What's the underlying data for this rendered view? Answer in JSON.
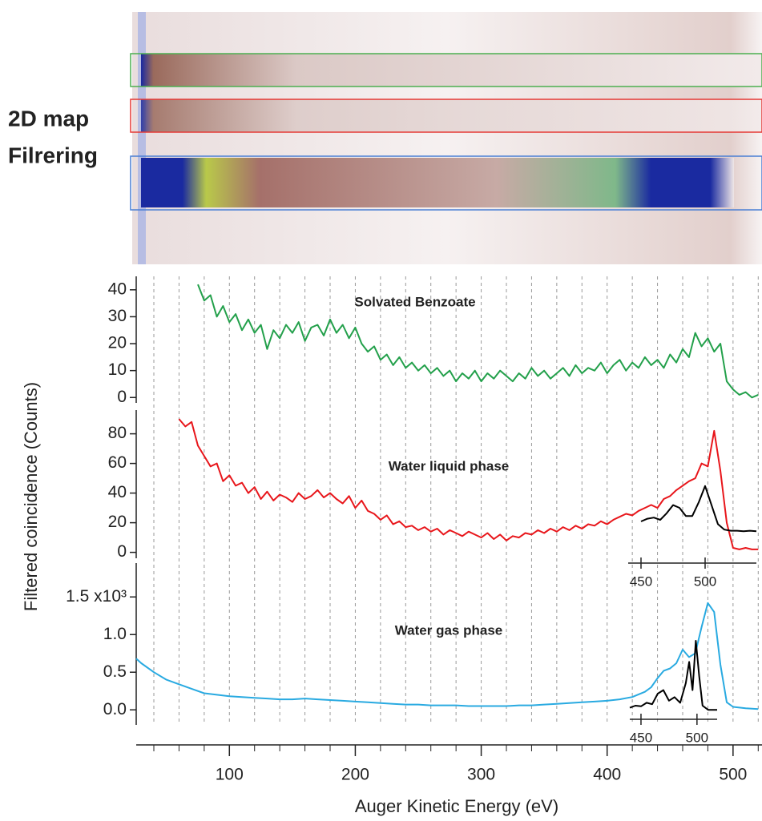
{
  "map": {
    "labels": [
      "2D map",
      "Filrering"
    ]
  },
  "chart_data": [
    {
      "type": "line",
      "title": "Solvated Benzoate",
      "xlim": [
        26,
        523
      ],
      "ylim": [
        -2,
        45
      ],
      "yticks": [
        0,
        10,
        20,
        30,
        40
      ],
      "series": [
        {
          "color": "#23a04b",
          "x": [
            75,
            80,
            85,
            90,
            95,
            100,
            105,
            110,
            115,
            120,
            125,
            130,
            135,
            140,
            145,
            150,
            155,
            160,
            165,
            170,
            175,
            180,
            185,
            190,
            195,
            200,
            205,
            210,
            215,
            220,
            225,
            230,
            235,
            240,
            245,
            250,
            255,
            260,
            265,
            270,
            275,
            280,
            285,
            290,
            295,
            300,
            305,
            310,
            315,
            320,
            325,
            330,
            335,
            340,
            345,
            350,
            355,
            360,
            365,
            370,
            375,
            380,
            385,
            390,
            395,
            400,
            405,
            410,
            415,
            420,
            425,
            430,
            435,
            440,
            445,
            450,
            455,
            460,
            465,
            470,
            475,
            480,
            485,
            490,
            495,
            500,
            505,
            510,
            515,
            520
          ],
          "values": [
            42,
            36,
            38,
            30,
            34,
            28,
            31,
            25,
            29,
            24,
            27,
            18,
            25,
            22,
            27,
            24,
            28,
            21,
            26,
            27,
            23,
            29,
            24,
            27,
            22,
            26,
            20,
            17,
            19,
            14,
            16,
            12,
            15,
            11,
            13,
            10,
            12,
            9,
            11,
            8,
            10,
            6,
            9,
            7,
            10,
            6,
            9,
            7,
            10,
            8,
            6,
            9,
            7,
            11,
            8,
            10,
            7,
            9,
            11,
            8,
            12,
            9,
            11,
            10,
            13,
            9,
            12,
            14,
            10,
            13,
            11,
            15,
            12,
            14,
            11,
            16,
            13,
            18,
            15,
            24,
            19,
            22,
            17,
            20,
            6,
            3,
            1,
            2,
            0,
            1
          ]
        }
      ]
    },
    {
      "type": "line",
      "title": "Water liquid phase",
      "ylabel": "Filtered coincidence (Counts)",
      "xlim": [
        26,
        523
      ],
      "ylim": [
        -4,
        96
      ],
      "yticks": [
        0,
        20,
        40,
        60,
        80
      ],
      "series": [
        {
          "color": "#e8161b",
          "x": [
            60,
            65,
            70,
            75,
            80,
            85,
            90,
            95,
            100,
            105,
            110,
            115,
            120,
            125,
            130,
            135,
            140,
            145,
            150,
            155,
            160,
            165,
            170,
            175,
            180,
            185,
            190,
            195,
            200,
            205,
            210,
            215,
            220,
            225,
            230,
            235,
            240,
            245,
            250,
            255,
            260,
            265,
            270,
            275,
            280,
            285,
            290,
            295,
            300,
            305,
            310,
            315,
            320,
            325,
            330,
            335,
            340,
            345,
            350,
            355,
            360,
            365,
            370,
            375,
            380,
            385,
            390,
            395,
            400,
            405,
            410,
            415,
            420,
            425,
            430,
            435,
            440,
            445,
            450,
            455,
            460,
            465,
            470,
            475,
            480,
            485,
            490,
            495,
            500,
            505,
            510,
            515,
            520
          ],
          "values": [
            90,
            85,
            88,
            72,
            65,
            58,
            60,
            48,
            52,
            45,
            47,
            40,
            44,
            36,
            41,
            35,
            39,
            37,
            34,
            40,
            36,
            38,
            42,
            37,
            40,
            36,
            33,
            38,
            30,
            35,
            28,
            26,
            22,
            25,
            19,
            21,
            17,
            18,
            15,
            17,
            14,
            16,
            12,
            15,
            13,
            11,
            14,
            12,
            10,
            13,
            9,
            12,
            8,
            11,
            10,
            13,
            12,
            15,
            13,
            16,
            14,
            17,
            15,
            18,
            16,
            19,
            18,
            21,
            19,
            22,
            24,
            26,
            25,
            28,
            30,
            32,
            30,
            36,
            38,
            42,
            45,
            48,
            50,
            60,
            58,
            82,
            55,
            20,
            3,
            2,
            3,
            2,
            2
          ]
        }
      ]
    },
    {
      "type": "line",
      "title": "Water gas phase",
      "xlabel": "Auger Kinetic Energy (eV)",
      "xlim": [
        26,
        523
      ],
      "ylim": [
        -0.2,
        1.95
      ],
      "xticks": [
        100,
        200,
        300,
        400,
        500
      ],
      "xminorticks": [
        40,
        60,
        80,
        120,
        140,
        160,
        180,
        220,
        240,
        260,
        280,
        320,
        340,
        360,
        380,
        420,
        440,
        460,
        480,
        520
      ],
      "yticks": [
        {
          "value": 0,
          "label": "0.0"
        },
        {
          "value": 0.5,
          "label": "0.5"
        },
        {
          "value": 1,
          "label": "1.0"
        },
        {
          "value": 1.5,
          "label": "1.5 x10³"
        }
      ],
      "series": [
        {
          "color": "#29aae1",
          "x": [
            26,
            30,
            40,
            50,
            60,
            70,
            80,
            90,
            100,
            110,
            120,
            130,
            140,
            150,
            160,
            170,
            180,
            190,
            200,
            210,
            220,
            230,
            240,
            250,
            260,
            270,
            280,
            290,
            300,
            310,
            320,
            330,
            340,
            350,
            360,
            370,
            380,
            390,
            400,
            410,
            420,
            430,
            435,
            440,
            445,
            450,
            455,
            460,
            465,
            470,
            475,
            480,
            485,
            490,
            495,
            500,
            510,
            520
          ],
          "values": [
            0.68,
            0.62,
            0.5,
            0.4,
            0.34,
            0.28,
            0.22,
            0.2,
            0.18,
            0.17,
            0.16,
            0.15,
            0.14,
            0.14,
            0.15,
            0.14,
            0.13,
            0.12,
            0.11,
            0.1,
            0.09,
            0.08,
            0.07,
            0.07,
            0.06,
            0.06,
            0.06,
            0.05,
            0.05,
            0.05,
            0.05,
            0.06,
            0.06,
            0.07,
            0.08,
            0.09,
            0.1,
            0.11,
            0.12,
            0.14,
            0.17,
            0.24,
            0.3,
            0.42,
            0.52,
            0.55,
            0.62,
            0.8,
            0.7,
            0.75,
            1.1,
            1.42,
            1.3,
            0.6,
            0.1,
            0.04,
            0.02,
            0.01
          ]
        }
      ]
    },
    {
      "type": "inset",
      "xlim": [
        440,
        540
      ],
      "ylim": [
        0,
        1
      ],
      "xticks": [
        450,
        500
      ],
      "series": [
        {
          "color": "#000000",
          "x": [
            450,
            455,
            460,
            465,
            470,
            475,
            480,
            485,
            490,
            495,
            500,
            505,
            510,
            515,
            520,
            525,
            530,
            535,
            540
          ],
          "values": [
            0.25,
            0.3,
            0.32,
            0.28,
            0.4,
            0.55,
            0.5,
            0.35,
            0.35,
            0.6,
            0.9,
            0.55,
            0.2,
            0.1,
            0.08,
            0.08,
            0.07,
            0.08,
            0.07
          ]
        }
      ]
    },
    {
      "type": "inset",
      "xlim": [
        440,
        518
      ],
      "ylim": [
        0,
        1
      ],
      "xticks": [
        450,
        500
      ],
      "series": [
        {
          "color": "#000000",
          "x": [
            440,
            445,
            450,
            455,
            460,
            465,
            470,
            475,
            480,
            485,
            490,
            493,
            496,
            499,
            502,
            505,
            510,
            515,
            518
          ],
          "values": [
            0.05,
            0.08,
            0.07,
            0.12,
            0.1,
            0.25,
            0.3,
            0.15,
            0.2,
            0.12,
            0.4,
            0.7,
            0.3,
            1.0,
            0.5,
            0.08,
            0.02,
            0.02,
            0.02
          ]
        }
      ]
    }
  ]
}
